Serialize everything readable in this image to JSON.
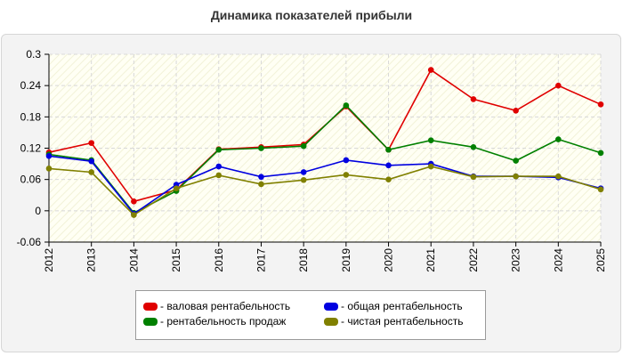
{
  "colors": {
    "gross": "#e00000",
    "sales": "#008000",
    "total": "#0000e0",
    "net": "#808000"
  },
  "chart_data": {
    "type": "line",
    "title": "Динамика показателей прибыли",
    "xlabel": "",
    "ylabel": "",
    "ylim": [
      -0.06,
      0.3
    ],
    "yticks": [
      "0.3",
      "0.24",
      "0.18",
      "0.12",
      "0.06",
      "0",
      "-0.06"
    ],
    "categories": [
      "2012",
      "2013",
      "2014",
      "2015",
      "2016",
      "2017",
      "2018",
      "2019",
      "2020",
      "2021",
      "2022",
      "2023",
      "2024",
      "2025"
    ],
    "grid": true,
    "legend_position": "bottom",
    "series": [
      {
        "name": "- валовая рентабельность",
        "color": "#e00000",
        "values": [
          0.112,
          0.13,
          0.018,
          0.04,
          0.118,
          0.122,
          0.127,
          0.2,
          0.117,
          0.27,
          0.214,
          0.192,
          0.24,
          0.204
        ]
      },
      {
        "name": "- рентабельность продаж",
        "color": "#008000",
        "values": [
          0.108,
          0.097,
          -0.004,
          0.038,
          0.117,
          0.12,
          0.124,
          0.202,
          0.117,
          0.135,
          0.122,
          0.096,
          0.137,
          0.111
        ]
      },
      {
        "name": "- общая рентабельность",
        "color": "#0000e0",
        "values": [
          0.105,
          0.095,
          -0.006,
          0.05,
          0.085,
          0.065,
          0.074,
          0.097,
          0.087,
          0.09,
          0.066,
          0.066,
          0.064,
          0.043
        ]
      },
      {
        "name": "- чистая рентабельность",
        "color": "#808000",
        "values": [
          0.081,
          0.074,
          -0.008,
          0.043,
          0.068,
          0.051,
          0.059,
          0.069,
          0.06,
          0.085,
          0.065,
          0.066,
          0.066,
          0.041
        ]
      }
    ]
  }
}
